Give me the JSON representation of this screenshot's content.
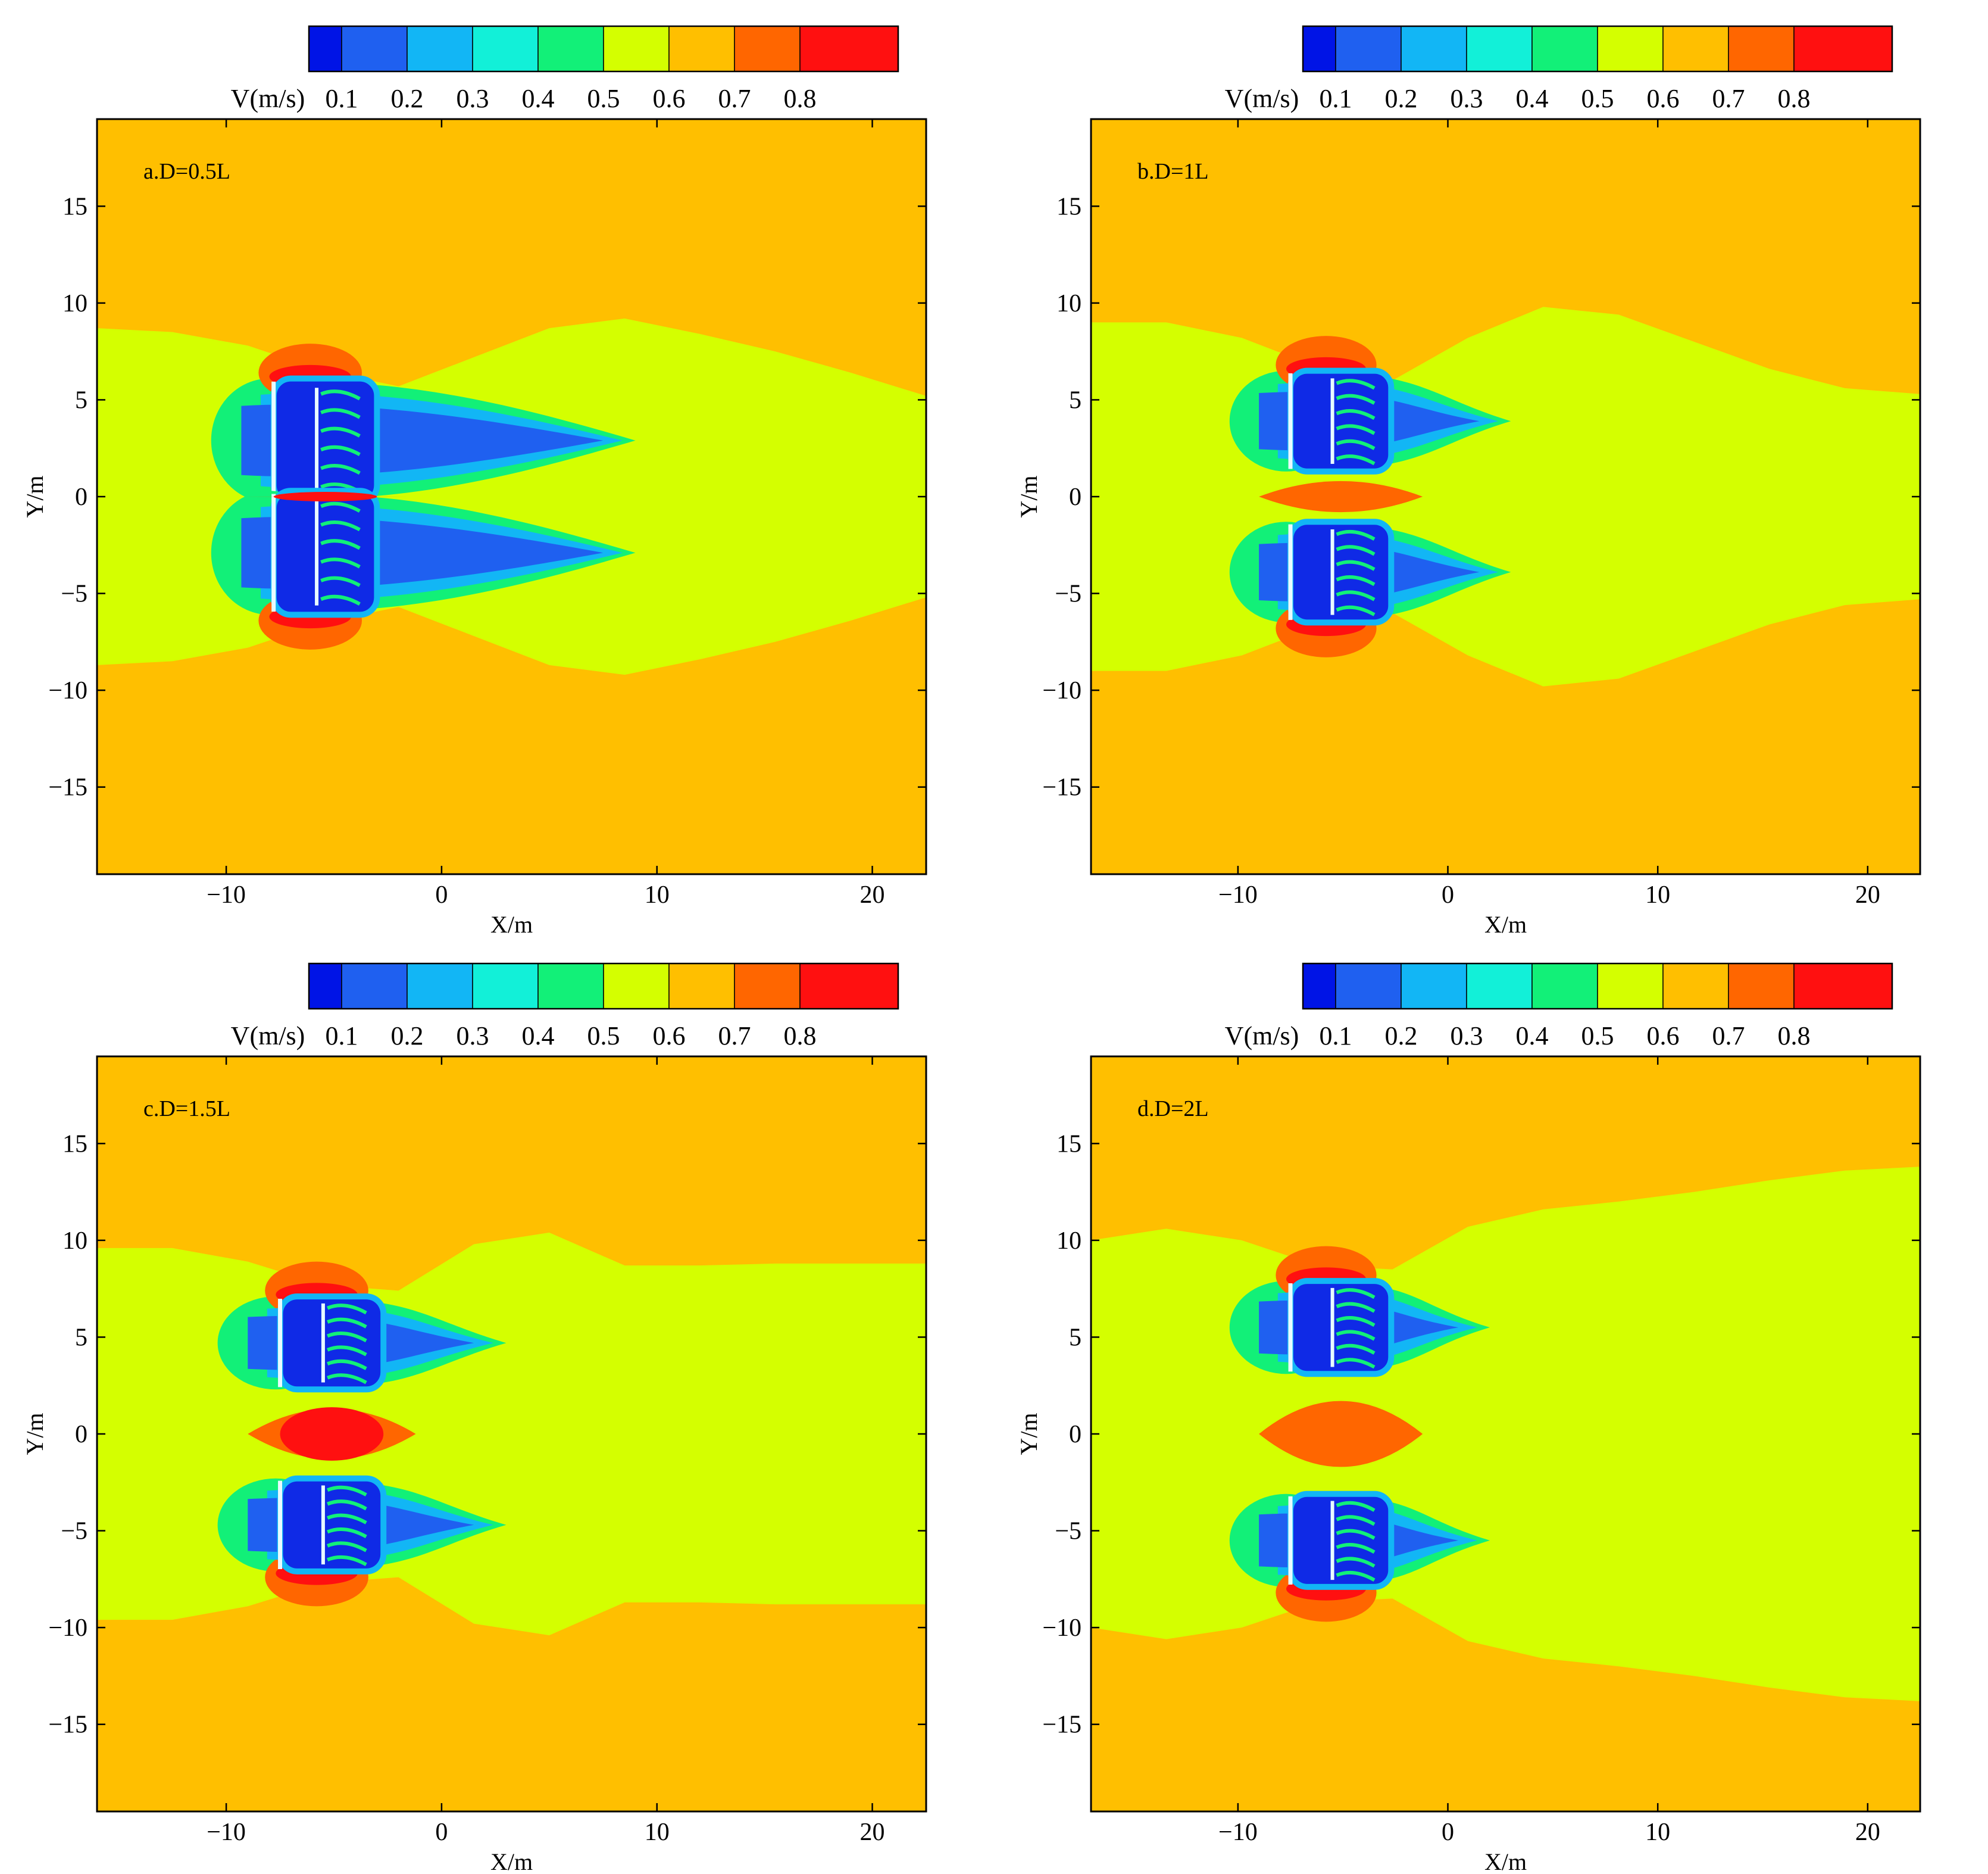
{
  "figure": {
    "colorbar": {
      "label": "V(m/s)",
      "ticks": [
        "0.1",
        "0.2",
        "0.3",
        "0.4",
        "0.5",
        "0.6",
        "0.7",
        "0.8"
      ],
      "colors": [
        "#0014e6",
        "#1f60f0",
        "#12b6f5",
        "#12f0d8",
        "#12f078",
        "#d4ff00",
        "#ffbf00",
        "#ff6600",
        "#ff1010"
      ]
    },
    "field_colors": {
      "background": "#ffbf00",
      "wake": "#d4ff00",
      "acceleration": "#ff6600",
      "peak": "#ff1010",
      "recirculation": "#0f2ae6",
      "shear": "#12f078",
      "mid": "#12b6f5",
      "slow": "#1f60f0",
      "structure": "#e8fbff"
    }
  },
  "chart_data": [
    {
      "type": "heatmap",
      "panel_label": "a.D=0.5L",
      "xlabel": "X/m",
      "ylabel": "Y/m",
      "xlim": [
        -16,
        22.5
      ],
      "ylim": [
        -19.5,
        19.5
      ],
      "xticks": [
        -10,
        0,
        10,
        20
      ],
      "yticks": [
        -15,
        -10,
        -5,
        0,
        5,
        10,
        15
      ],
      "quantity": "V(m/s)",
      "bodies": [
        {
          "x": -7.8,
          "y_center": 2.9,
          "half_width": 3.2
        },
        {
          "x": -7.8,
          "y_center": -2.9,
          "half_width": 3.2
        }
      ],
      "wake_end_x": 9,
      "wake_outer_y": [
        8.7,
        8.5,
        7.8,
        6.5,
        5.7,
        7.2,
        8.7,
        9.2,
        8.4,
        7.5,
        6.4,
        5.2
      ],
      "centerline_peak": true
    },
    {
      "type": "heatmap",
      "panel_label": "b.D=1L",
      "xlabel": "X/m",
      "ylabel": "Y/m",
      "xlim": [
        -17,
        22.5
      ],
      "ylim": [
        -19.5,
        19.5
      ],
      "xticks": [
        -10,
        0,
        10,
        20
      ],
      "yticks": [
        -15,
        -10,
        -5,
        0,
        5,
        10,
        15
      ],
      "quantity": "V(m/s)",
      "bodies": [
        {
          "x": -7.5,
          "y_center": 3.9,
          "half_width": 2.6
        },
        {
          "x": -7.5,
          "y_center": -3.9,
          "half_width": 2.6
        }
      ],
      "wake_end_x": 3,
      "wake_outer_y": [
        9.0,
        9.0,
        8.2,
        6.7,
        6.0,
        8.2,
        9.8,
        9.4,
        8.0,
        6.6,
        5.6,
        5.3
      ],
      "centerline_peak": false
    },
    {
      "type": "heatmap",
      "panel_label": "c.D=1.5L",
      "xlabel": "X/m",
      "ylabel": "Y/m",
      "xlim": [
        -16,
        22.5
      ],
      "ylim": [
        -19.5,
        19.5
      ],
      "xticks": [
        -10,
        0,
        10,
        20
      ],
      "yticks": [
        -15,
        -10,
        -5,
        0,
        5,
        10,
        15
      ],
      "quantity": "V(m/s)",
      "bodies": [
        {
          "x": -7.5,
          "y_center": 4.7,
          "half_width": 2.4
        },
        {
          "x": -7.5,
          "y_center": -4.7,
          "half_width": 2.4
        }
      ],
      "wake_end_x": 3,
      "wake_outer_y": [
        9.6,
        9.6,
        8.9,
        7.7,
        7.4,
        9.8,
        10.4,
        8.7,
        8.7,
        8.8,
        8.8,
        8.8
      ],
      "centerline_peak": true
    },
    {
      "type": "heatmap",
      "panel_label": "d.D=2L",
      "xlabel": "X/m",
      "ylabel": "Y/m",
      "xlim": [
        -17,
        22.5
      ],
      "ylim": [
        -19.5,
        19.5
      ],
      "xticks": [
        -10,
        0,
        10,
        20
      ],
      "yticks": [
        -15,
        -10,
        -5,
        0,
        5,
        10,
        15
      ],
      "quantity": "V(m/s)",
      "bodies": [
        {
          "x": -7.5,
          "y_center": 5.5,
          "half_width": 2.4
        },
        {
          "x": -7.5,
          "y_center": -5.5,
          "half_width": 2.4
        }
      ],
      "wake_end_x": 2,
      "wake_outer_y": [
        10.0,
        10.6,
        10.0,
        8.7,
        8.5,
        10.7,
        11.6,
        12.0,
        12.5,
        13.1,
        13.6,
        13.8
      ],
      "centerline_peak": false
    }
  ]
}
